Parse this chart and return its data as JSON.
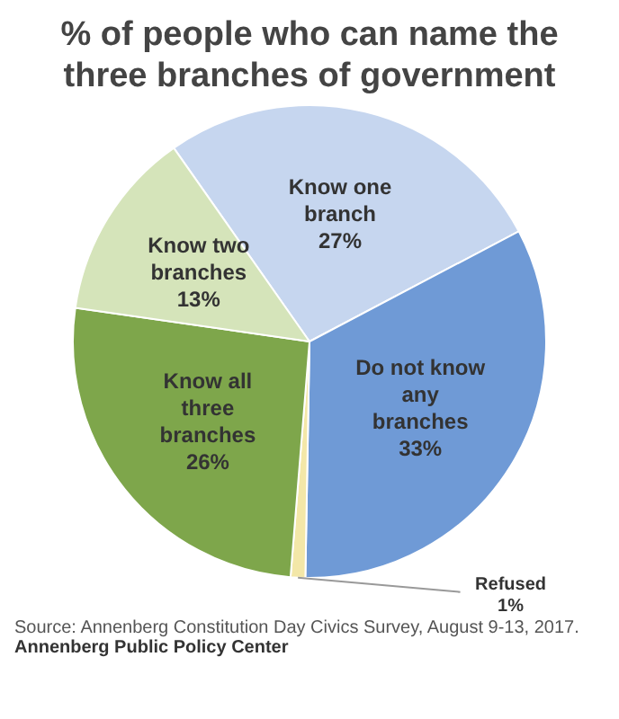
{
  "chart_data": {
    "type": "pie",
    "title": "% of people who can name the three branches of government",
    "categories": [
      "Know one branch",
      "Do not know any branches",
      "Refused",
      "Know all three branches",
      "Know two branches"
    ],
    "values": [
      27,
      33,
      1,
      26,
      13
    ],
    "value_labels": [
      "27%",
      "33%",
      "1%",
      "26%",
      "13%"
    ],
    "colors": [
      "#c6d6ef",
      "#6f9ad6",
      "#f3e7a8",
      "#7ea64b",
      "#d5e4ba"
    ],
    "legend": false,
    "annotations": [
      "Source: Annenberg Constitution Day Civics Survey, August 9-13, 2017.",
      "Annenberg Public Policy Center"
    ]
  }
}
